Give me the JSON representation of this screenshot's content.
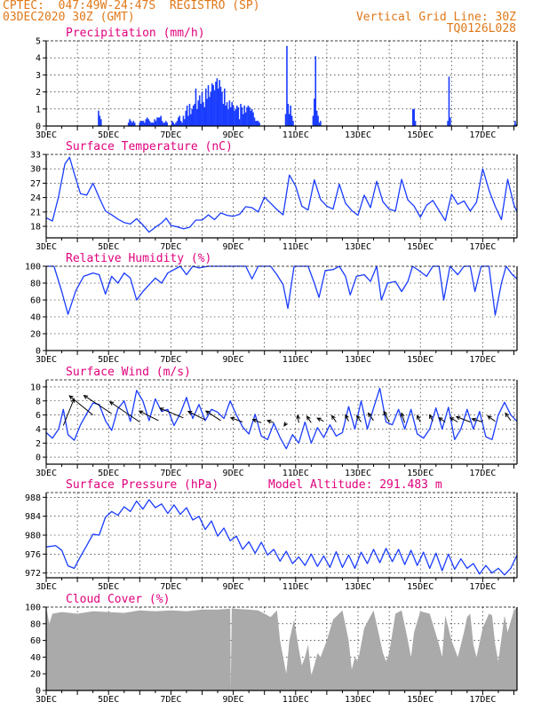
{
  "header": {
    "line1_left": "CPTEC:  047:49W-24:47S  REGISTRO (SP)",
    "line2_left": "03DEC2020 30Z (GMT)",
    "line2_right": "Vertical Grid Line: 30Z",
    "line3_right": "TQ0126L028"
  },
  "colors": {
    "accent": "#e07818",
    "title": "#e0007c",
    "line": "#1a3cff",
    "bar": "#1a3cff",
    "cloud": "#aaaaaa",
    "grid": "#000000"
  },
  "x_tick_labels": [
    "3DEC",
    "5DEC",
    "7DEC",
    "9DEC",
    "11DEC",
    "13DEC",
    "15DEC",
    "17DEC"
  ],
  "x_day_range": [
    3,
    18.1
  ],
  "chart_data": [
    {
      "id": "precip",
      "type": "bar",
      "title": "Precipitation (mm/h)",
      "ylim": [
        0,
        5
      ],
      "yticks": [
        0,
        1,
        2,
        3,
        4,
        5
      ],
      "x": [
        4.68,
        4.72,
        4.76,
        5.64,
        5.68,
        5.72,
        5.76,
        5.8,
        5.84,
        6.0,
        6.04,
        6.08,
        6.12,
        6.16,
        6.2,
        6.24,
        6.28,
        6.32,
        6.36,
        6.4,
        6.44,
        6.48,
        6.52,
        6.56,
        6.6,
        6.64,
        6.68,
        6.72,
        6.76,
        6.8,
        6.84,
        6.88,
        7.04,
        7.08,
        7.12,
        7.16,
        7.2,
        7.24,
        7.28,
        7.32,
        7.36,
        7.4,
        7.44,
        7.48,
        7.52,
        7.56,
        7.6,
        7.64,
        7.68,
        7.72,
        7.76,
        7.8,
        7.84,
        7.88,
        7.92,
        7.96,
        8.0,
        8.04,
        8.08,
        8.12,
        8.16,
        8.2,
        8.24,
        8.28,
        8.32,
        8.36,
        8.4,
        8.44,
        8.48,
        8.52,
        8.56,
        8.6,
        8.64,
        8.68,
        8.72,
        8.76,
        8.8,
        8.84,
        8.88,
        8.92,
        8.96,
        9.0,
        9.04,
        9.08,
        9.12,
        9.16,
        9.2,
        9.24,
        9.28,
        9.32,
        9.36,
        9.4,
        9.44,
        9.48,
        9.52,
        9.56,
        9.6,
        9.64,
        9.68,
        9.72,
        9.76,
        9.8,
        9.84,
        10.68,
        10.72,
        10.76,
        10.8,
        10.84,
        10.88,
        10.92,
        11.56,
        11.6,
        11.64,
        11.68,
        11.72,
        11.76,
        11.8,
        14.76,
        14.8,
        14.84,
        15.88,
        15.92,
        15.96,
        18.04,
        18.08
      ],
      "values": [
        0.9,
        0.6,
        0.4,
        0.2,
        0.4,
        0.3,
        0.2,
        0.3,
        0.2,
        0.2,
        0.3,
        0.3,
        0.3,
        0.2,
        0.4,
        0.5,
        0.4,
        0.3,
        0.2,
        0.2,
        0.2,
        0.4,
        0.3,
        0.5,
        0.5,
        0.5,
        0.6,
        0.3,
        0.2,
        0.2,
        0.3,
        0.2,
        0.3,
        0.2,
        0.1,
        0.2,
        0.3,
        0.5,
        0.6,
        0.3,
        0.2,
        0.6,
        0.4,
        0.9,
        1.2,
        0.6,
        1.3,
        0.7,
        1.0,
        1.2,
        1.3,
        2.2,
        1.0,
        1.5,
        1.8,
        1.3,
        2.0,
        1.4,
        1.1,
        2.2,
        1.6,
        2.4,
        1.7,
        2.0,
        2.5,
        2.4,
        2.1,
        2.6,
        2.8,
        2.2,
        2.7,
        2.3,
        2.0,
        1.3,
        2.2,
        1.2,
        1.4,
        1.0,
        1.5,
        1.1,
        1.4,
        1.2,
        0.9,
        1.0,
        1.2,
        1.1,
        0.4,
        1.3,
        1.1,
        0.7,
        1.2,
        0.8,
        1.1,
        1.2,
        1.1,
        0.9,
        1.0,
        0.8,
        0.5,
        0.3,
        0.3,
        0.3,
        0.2,
        0.7,
        4.7,
        1.3,
        0.7,
        1.2,
        0.6,
        0.3,
        0.6,
        1.6,
        4.1,
        0.9,
        0.6,
        0.2,
        0.3,
        1.0,
        1.0,
        0.3,
        0.3,
        2.9,
        0.5,
        0.3,
        0.1
      ]
    },
    {
      "id": "temp",
      "type": "line",
      "title": "Surface Temperature (nC)",
      "ylim": [
        15.6,
        33
      ],
      "yticks": [
        18,
        21,
        24,
        27,
        30,
        33
      ],
      "x": [
        3.0,
        3.2,
        3.4,
        3.6,
        3.75,
        3.9,
        4.1,
        4.3,
        4.5,
        4.7,
        4.9,
        5.1,
        5.3,
        5.5,
        5.7,
        5.9,
        6.1,
        6.3,
        6.5,
        6.7,
        6.85,
        7.0,
        7.2,
        7.4,
        7.6,
        7.8,
        8.0,
        8.2,
        8.4,
        8.6,
        8.8,
        9.0,
        9.2,
        9.4,
        9.6,
        9.8,
        10.0,
        10.2,
        10.4,
        10.6,
        10.8,
        11.0,
        11.2,
        11.4,
        11.6,
        11.8,
        12.0,
        12.2,
        12.4,
        12.6,
        12.8,
        13.0,
        13.2,
        13.4,
        13.6,
        13.8,
        14.0,
        14.2,
        14.4,
        14.6,
        14.8,
        15.0,
        15.2,
        15.4,
        15.6,
        15.8,
        16.0,
        16.2,
        16.4,
        16.6,
        16.8,
        17.0,
        17.2,
        17.4,
        17.6,
        17.8,
        18.0,
        18.1
      ],
      "values": [
        19.8,
        19.1,
        24.3,
        31.0,
        32.4,
        29.0,
        24.8,
        24.5,
        27.0,
        24.0,
        21.2,
        20.4,
        19.5,
        18.8,
        18.5,
        19.6,
        18.3,
        16.8,
        17.8,
        18.7,
        19.7,
        18.2,
        17.9,
        17.5,
        17.8,
        19.3,
        19.3,
        20.4,
        19.4,
        20.8,
        20.3,
        20.1,
        20.5,
        22.1,
        21.9,
        21.0,
        24.1,
        22.8,
        21.5,
        20.4,
        28.7,
        26.4,
        22.2,
        21.4,
        27.7,
        23.6,
        22.2,
        21.6,
        26.8,
        22.8,
        21.3,
        20.3,
        24.5,
        21.9,
        27.4,
        23.1,
        21.6,
        21.2,
        27.8,
        23.5,
        22.2,
        19.9,
        22.4,
        23.4,
        21.3,
        19.2,
        24.7,
        22.6,
        23.3,
        21.2,
        23.0,
        30.0,
        25.6,
        22.2,
        19.4,
        27.8,
        22.5,
        21.0
      ]
    },
    {
      "id": "rh",
      "type": "line",
      "title": "Relative Humidity (%)",
      "ylim": [
        0,
        100
      ],
      "yticks": [
        0,
        20,
        40,
        60,
        80,
        100
      ],
      "x": [
        3.0,
        3.25,
        3.5,
        3.7,
        3.95,
        4.2,
        4.5,
        4.7,
        4.9,
        5.1,
        5.3,
        5.5,
        5.7,
        5.9,
        6.1,
        6.3,
        6.5,
        6.7,
        6.9,
        7.1,
        7.3,
        7.5,
        7.7,
        7.9,
        8.2,
        8.6,
        9.0,
        9.4,
        9.6,
        9.8,
        10.0,
        10.2,
        10.4,
        10.6,
        10.75,
        10.95,
        11.2,
        11.4,
        11.6,
        11.75,
        11.95,
        12.2,
        12.4,
        12.6,
        12.75,
        12.95,
        13.2,
        13.4,
        13.6,
        13.75,
        13.95,
        14.2,
        14.4,
        14.6,
        14.75,
        14.95,
        15.2,
        15.4,
        15.6,
        15.75,
        15.95,
        16.2,
        16.4,
        16.6,
        16.75,
        16.95,
        17.2,
        17.4,
        17.6,
        17.75,
        17.95,
        18.1
      ],
      "values": [
        100,
        100,
        70,
        43,
        71,
        88,
        92,
        90,
        67,
        88,
        80,
        92,
        86,
        60,
        70,
        78,
        86,
        80,
        92,
        96,
        100,
        90,
        100,
        98,
        100,
        100,
        100,
        100,
        85,
        100,
        100,
        100,
        90,
        78,
        50,
        100,
        100,
        100,
        80,
        63,
        95,
        96,
        100,
        88,
        66,
        88,
        90,
        82,
        100,
        60,
        80,
        82,
        70,
        82,
        100,
        95,
        88,
        100,
        100,
        60,
        100,
        90,
        100,
        100,
        70,
        100,
        100,
        42,
        80,
        100,
        90,
        85
      ]
    },
    {
      "id": "wind",
      "type": "line",
      "title": "Surface Wind (m/s)",
      "ylim": [
        -1,
        11
      ],
      "yticks": [
        0,
        2,
        4,
        6,
        8,
        10
      ],
      "x": [
        3.0,
        3.2,
        3.4,
        3.55,
        3.7,
        3.9,
        4.1,
        4.3,
        4.5,
        4.7,
        4.9,
        5.1,
        5.3,
        5.5,
        5.7,
        5.9,
        6.1,
        6.3,
        6.5,
        6.7,
        6.9,
        7.1,
        7.3,
        7.5,
        7.7,
        7.9,
        8.1,
        8.3,
        8.5,
        8.7,
        8.9,
        9.1,
        9.3,
        9.5,
        9.7,
        9.9,
        10.1,
        10.3,
        10.5,
        10.7,
        10.9,
        11.1,
        11.3,
        11.5,
        11.7,
        11.9,
        12.1,
        12.3,
        12.5,
        12.7,
        12.9,
        13.1,
        13.3,
        13.5,
        13.7,
        13.9,
        14.1,
        14.3,
        14.5,
        14.7,
        14.9,
        15.1,
        15.3,
        15.5,
        15.7,
        15.9,
        16.1,
        16.3,
        16.5,
        16.7,
        16.9,
        17.1,
        17.3,
        17.5,
        17.7,
        17.9,
        18.1
      ],
      "values": [
        3.5,
        2.7,
        4.0,
        6.8,
        3.2,
        2.4,
        4.6,
        6.2,
        7.7,
        7.5,
        5.2,
        3.8,
        6.9,
        8.0,
        5.1,
        9.5,
        8.0,
        5.2,
        8.3,
        6.5,
        6.8,
        4.5,
        6.2,
        8.5,
        5.5,
        7.5,
        5.2,
        6.8,
        6.4,
        5.5,
        8.0,
        6.0,
        4.3,
        3.3,
        6.1,
        3.0,
        2.5,
        4.8,
        2.8,
        1.2,
        3.2,
        2.0,
        5.0,
        2.0,
        4.2,
        2.8,
        4.6,
        3.0,
        3.5,
        7.2,
        4.0,
        8.0,
        4.0,
        7.0,
        9.8,
        5.0,
        4.6,
        6.8,
        4.0,
        6.8,
        3.3,
        2.7,
        4.0,
        7.0,
        4.0,
        7.1,
        2.5,
        4.0,
        6.8,
        4.0,
        6.5,
        2.9,
        2.5,
        6.0,
        7.8,
        6.0,
        5.1
      ]
    },
    {
      "id": "pres",
      "type": "line",
      "title": "Surface Pressure (hPa)",
      "annotation": "Model Altitude: 291.483 m",
      "ylim": [
        971,
        989
      ],
      "yticks": [
        972,
        976,
        980,
        984,
        988
      ],
      "x": [
        3.0,
        3.3,
        3.5,
        3.7,
        3.9,
        4.1,
        4.3,
        4.5,
        4.7,
        4.9,
        5.1,
        5.3,
        5.5,
        5.7,
        5.9,
        6.1,
        6.3,
        6.5,
        6.7,
        6.9,
        7.1,
        7.3,
        7.5,
        7.7,
        7.9,
        8.1,
        8.3,
        8.5,
        8.7,
        8.9,
        9.1,
        9.3,
        9.5,
        9.7,
        9.9,
        10.1,
        10.3,
        10.5,
        10.7,
        10.9,
        11.1,
        11.3,
        11.5,
        11.7,
        11.9,
        12.1,
        12.3,
        12.5,
        12.7,
        12.9,
        13.1,
        13.3,
        13.5,
        13.7,
        13.9,
        14.1,
        14.3,
        14.5,
        14.7,
        14.9,
        15.1,
        15.3,
        15.5,
        15.7,
        15.9,
        16.1,
        16.3,
        16.5,
        16.7,
        16.9,
        17.1,
        17.3,
        17.5,
        17.7,
        17.9,
        18.1
      ],
      "values": [
        977.5,
        977.8,
        976.8,
        973.5,
        973.0,
        975.5,
        977.8,
        980.2,
        980.0,
        983.8,
        985.0,
        984.2,
        986.0,
        985.0,
        987.2,
        985.5,
        987.5,
        985.8,
        986.6,
        984.6,
        986.4,
        984.4,
        985.8,
        983.2,
        984.0,
        981.2,
        983.0,
        979.8,
        981.5,
        978.8,
        979.8,
        977.0,
        978.6,
        976.2,
        978.5,
        975.8,
        977.0,
        974.5,
        976.6,
        974.0,
        975.4,
        973.6,
        976.0,
        973.4,
        975.6,
        973.2,
        976.5,
        973.2,
        975.8,
        973.0,
        976.4,
        974.0,
        977.0,
        974.2,
        977.2,
        974.4,
        977.0,
        973.8,
        976.8,
        973.6,
        976.4,
        973.0,
        976.2,
        972.5,
        976.0,
        972.8,
        975.0,
        973.0,
        974.0,
        971.8,
        973.6,
        972.0,
        973.0,
        971.6,
        973.0,
        975.8
      ]
    },
    {
      "id": "cloud",
      "type": "area",
      "title": "Cloud Cover (%)",
      "ylim": [
        0,
        100
      ],
      "yticks": [
        0,
        20,
        40,
        60,
        80,
        100
      ],
      "x": [
        3.0,
        3.1,
        3.2,
        3.5,
        4.0,
        4.5,
        5.0,
        5.5,
        6.0,
        6.5,
        7.0,
        7.5,
        8.0,
        8.5,
        8.9,
        8.92,
        8.95,
        9.0,
        9.5,
        9.8,
        10.0,
        10.2,
        10.4,
        10.5,
        10.6,
        10.7,
        10.8,
        10.95,
        11.1,
        11.2,
        11.3,
        11.4,
        11.5,
        11.6,
        11.7,
        11.8,
        12.0,
        12.2,
        12.5,
        12.7,
        12.8,
        12.9,
        13.0,
        13.2,
        13.5,
        13.8,
        13.9,
        14.0,
        14.2,
        14.4,
        14.6,
        14.7,
        14.8,
        15.0,
        15.3,
        15.6,
        15.7,
        15.8,
        16.0,
        16.2,
        16.4,
        16.5,
        16.6,
        16.7,
        16.8,
        17.0,
        17.2,
        17.3,
        17.4,
        17.5,
        17.7,
        17.8,
        18.0,
        18.1
      ],
      "values": [
        100,
        80,
        92,
        94,
        92,
        95,
        94,
        93,
        96,
        95,
        96,
        95,
        97,
        97,
        98,
        0,
        98,
        98,
        97,
        96,
        92,
        88,
        96,
        60,
        40,
        20,
        60,
        85,
        50,
        30,
        40,
        55,
        18,
        30,
        45,
        40,
        60,
        85,
        96,
        60,
        25,
        40,
        35,
        75,
        96,
        45,
        35,
        45,
        92,
        96,
        60,
        40,
        70,
        95,
        92,
        55,
        40,
        90,
        60,
        40,
        70,
        88,
        92,
        55,
        40,
        75,
        92,
        90,
        55,
        35,
        90,
        70,
        96,
        100
      ]
    }
  ],
  "wind_vectors": [
    {
      "x": 3.55,
      "y": 4.5,
      "u": -1.0,
      "v": -2.5
    },
    {
      "x": 4.5,
      "y": 6.0,
      "u": 2.2,
      "v": -1.8
    },
    {
      "x": 5.1,
      "y": 6.2,
      "u": 2.6,
      "v": -1.7
    },
    {
      "x": 6.0,
      "y": 5.0,
      "u": 2.8,
      "v": -1.9
    },
    {
      "x": 6.6,
      "y": 5.2,
      "u": 1.8,
      "v": -0.9
    },
    {
      "x": 7.4,
      "y": 5.6,
      "u": 2.2,
      "v": -0.9
    },
    {
      "x": 8.1,
      "y": 5.3,
      "u": 1.6,
      "v": -0.8
    },
    {
      "x": 8.6,
      "y": 5.2,
      "u": 1.4,
      "v": -0.9
    },
    {
      "x": 9.3,
      "y": 5.0,
      "u": 1.1,
      "v": -0.4
    },
    {
      "x": 9.9,
      "y": 4.9,
      "u": 0.8,
      "v": -0.3
    },
    {
      "x": 10.3,
      "y": 4.9,
      "u": 0.6,
      "v": -0.2
    },
    {
      "x": 10.7,
      "y": 4.9,
      "u": 0.2,
      "v": 0.3
    },
    {
      "x": 11.1,
      "y": 4.9,
      "u": 0.1,
      "v": -0.7
    },
    {
      "x": 11.5,
      "y": 4.9,
      "u": 0.4,
      "v": -0.6
    },
    {
      "x": 11.9,
      "y": 5.1,
      "u": 0.6,
      "v": -0.3
    },
    {
      "x": 12.3,
      "y": 5.0,
      "u": 0.4,
      "v": -0.6
    },
    {
      "x": 12.7,
      "y": 5.1,
      "u": 0.3,
      "v": -0.6
    },
    {
      "x": 13.1,
      "y": 5.0,
      "u": 0.4,
      "v": -0.6
    },
    {
      "x": 13.5,
      "y": 5.2,
      "u": 0.5,
      "v": -0.7
    },
    {
      "x": 14.0,
      "y": 5.0,
      "u": 0.5,
      "v": -1.0
    },
    {
      "x": 14.5,
      "y": 4.9,
      "u": 0.3,
      "v": -0.9
    },
    {
      "x": 15.0,
      "y": 5.0,
      "u": 0.3,
      "v": -0.6
    },
    {
      "x": 15.4,
      "y": 5.1,
      "u": 0.3,
      "v": -0.6
    },
    {
      "x": 15.8,
      "y": 5.0,
      "u": 0.6,
      "v": -0.4
    },
    {
      "x": 16.2,
      "y": 5.0,
      "u": 0.7,
      "v": -0.4
    },
    {
      "x": 16.6,
      "y": 5.0,
      "u": 1.3,
      "v": -0.5
    },
    {
      "x": 17.0,
      "y": 5.0,
      "u": 1.0,
      "v": -0.3
    },
    {
      "x": 17.4,
      "y": 5.1,
      "u": 0.7,
      "v": -0.5
    },
    {
      "x": 17.9,
      "y": 5.2,
      "u": 0.5,
      "v": -0.7
    }
  ]
}
